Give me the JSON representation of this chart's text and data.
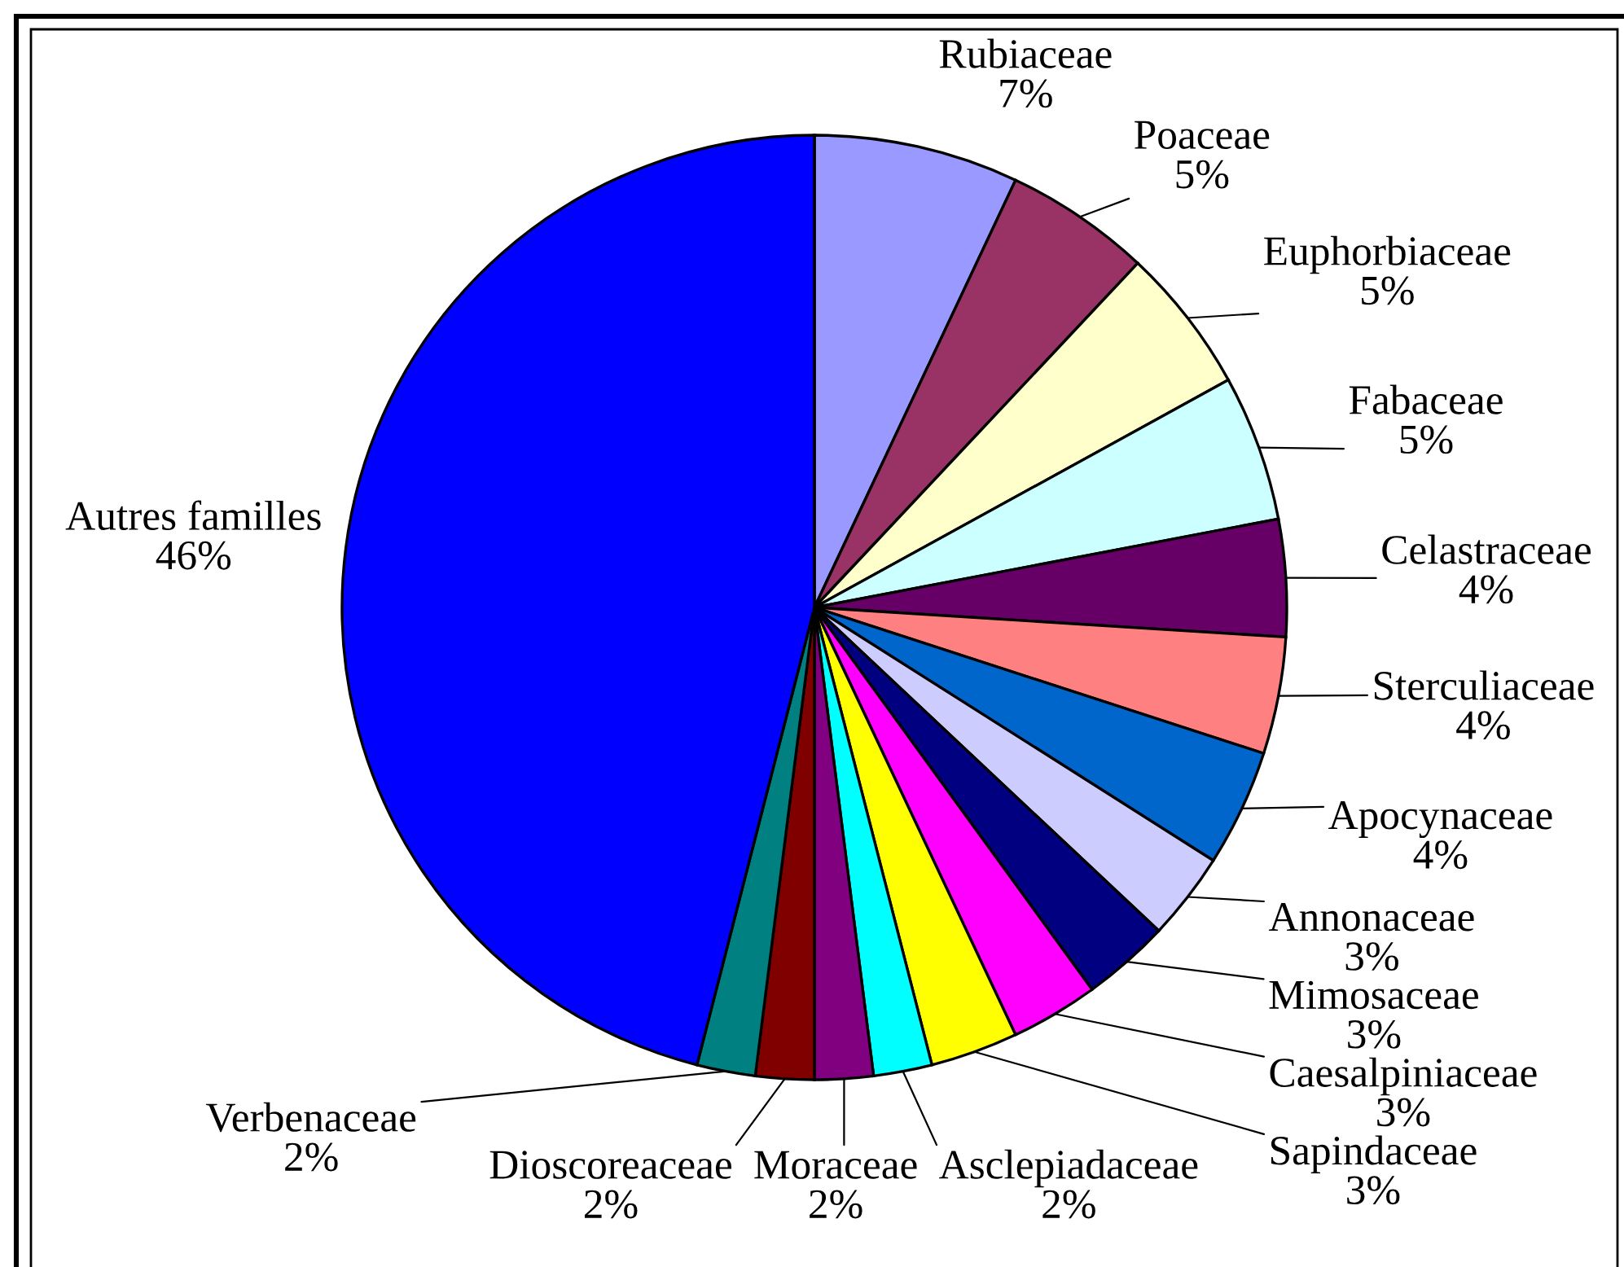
{
  "chart_data": {
    "type": "pie",
    "categories": [
      "Rubiaceae",
      "Poaceae",
      "Euphorbiaceae",
      "Fabaceae",
      "Celastraceae",
      "Sterculiaceae",
      "Apocynaceae",
      "Annonaceae",
      "Mimosaceae",
      "Caesalpiniaceae",
      "Sapindaceae",
      "Asclepiadaceae",
      "Moraceae",
      "Dioscoreaceae",
      "Verbenaceae",
      "Autres familles"
    ],
    "values": [
      7,
      5,
      5,
      5,
      4,
      4,
      4,
      3,
      3,
      3,
      3,
      2,
      2,
      2,
      2,
      46
    ],
    "colors": [
      "#9999ff",
      "#993366",
      "#ffffcc",
      "#ccffff",
      "#660066",
      "#ff8080",
      "#0066cc",
      "#ccccff",
      "#000080",
      "#ff00ff",
      "#ffff00",
      "#00ffff",
      "#800080",
      "#800000",
      "#008080",
      "#0000ff"
    ],
    "value_labels": [
      "7%",
      "5%",
      "5%",
      "5%",
      "4%",
      "4%",
      "4%",
      "3%",
      "3%",
      "3%",
      "3%",
      "2%",
      "2%",
      "2%",
      "2%",
      "46%"
    ]
  }
}
